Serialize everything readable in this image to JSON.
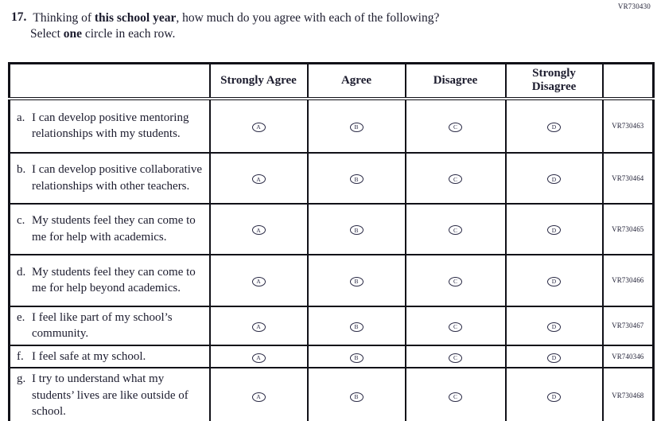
{
  "page_code": "VR730430",
  "question": {
    "number": "17.",
    "part1": "Thinking of ",
    "bold1": "this school year",
    "part2": ", how much do you agree with each of the following?",
    "line2_part1": "Select ",
    "line2_bold": "one",
    "line2_part2": " circle in each row."
  },
  "table": {
    "headers": {
      "strongly_agree": "Strongly Agree",
      "agree": "Agree",
      "disagree": "Disagree",
      "strongly_disagree_line1": "Strongly",
      "strongly_disagree_line2": "Disagree"
    },
    "options": [
      {
        "letter": "A",
        "label": "Strongly Agree"
      },
      {
        "letter": "B",
        "label": "Agree"
      },
      {
        "letter": "C",
        "label": "Disagree"
      },
      {
        "letter": "D",
        "label": "Strongly Disagree"
      }
    ],
    "rows": [
      {
        "letter": "a.",
        "statement": "I can develop positive mentoring relationships with my students.",
        "code": "VR730463"
      },
      {
        "letter": "b.",
        "statement": "I can develop positive collaborative relationships with other teachers.",
        "code": "VR730464"
      },
      {
        "letter": "c.",
        "statement": "My students feel they can come to me for help with academics.",
        "code": "VR730465"
      },
      {
        "letter": "d.",
        "statement": "My students feel they can come to me for help beyond academics.",
        "code": "VR730466"
      },
      {
        "letter": "e.",
        "statement": "I feel like part of my school’s community.",
        "code": "VR730467"
      },
      {
        "letter": "f.",
        "statement": "I feel safe at my school.",
        "code": "VR740346"
      },
      {
        "letter": "g.",
        "statement": "I try to understand what my students’ lives are like outside of school.",
        "code": "VR730468"
      }
    ]
  },
  "colors": {
    "ink": "#1c1c2e",
    "border": "#111118",
    "bubble": "#2a2a45"
  }
}
